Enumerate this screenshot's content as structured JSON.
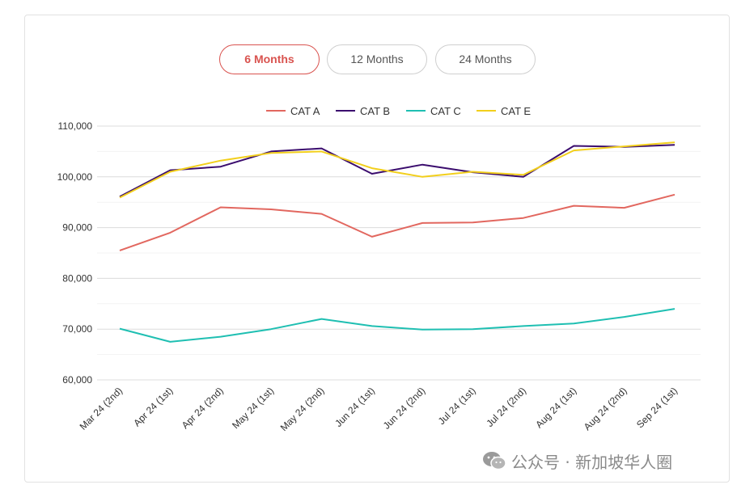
{
  "range_buttons": [
    {
      "label": "6 Months",
      "active": true
    },
    {
      "label": "12 Months",
      "active": false
    },
    {
      "label": "24 Months",
      "active": false
    }
  ],
  "watermark": {
    "text": "公众号 · 新加坡华人圈",
    "icon": "wechat-icon"
  },
  "colors": {
    "CAT A": "#e2675f",
    "CAT B": "#3b0d6e",
    "CAT C": "#1fbfb2",
    "CAT E": "#f2cf1c",
    "active_button": "#d9534f"
  },
  "chart_data": {
    "type": "line",
    "categories": [
      "Mar 24 (2nd)",
      "Apr 24 (1st)",
      "Apr 24 (2nd)",
      "May 24 (1st)",
      "May 24 (2nd)",
      "Jun 24 (1st)",
      "Jun 24 (2nd)",
      "Jul 24 (1st)",
      "Jul 24 (2nd)",
      "Aug 24 (1st)",
      "Aug 24 (2nd)",
      "Sep 24 (1st)"
    ],
    "series": [
      {
        "name": "CAT A",
        "values": [
          85500,
          89000,
          94000,
          93600,
          92700,
          88200,
          90900,
          91000,
          91900,
          94300,
          93900,
          96500
        ]
      },
      {
        "name": "CAT B",
        "values": [
          96100,
          101300,
          102000,
          105000,
          105600,
          100600,
          102400,
          100900,
          100000,
          106100,
          105900,
          106300
        ]
      },
      {
        "name": "CAT C",
        "values": [
          70100,
          67500,
          68500,
          70000,
          72000,
          70600,
          69900,
          70000,
          70600,
          71100,
          72400,
          74000
        ]
      },
      {
        "name": "CAT E",
        "values": [
          95900,
          101000,
          103200,
          104700,
          105000,
          101700,
          100000,
          101000,
          100400,
          105200,
          106000,
          106800
        ]
      }
    ],
    "ylim": [
      60000,
      110000
    ],
    "yticks": [
      60000,
      70000,
      80000,
      90000,
      100000,
      110000
    ],
    "ytick_labels": [
      "60,000",
      "70,000",
      "80,000",
      "90,000",
      "100,000",
      "110,000"
    ],
    "grid": true,
    "legend_position": "top-center"
  }
}
